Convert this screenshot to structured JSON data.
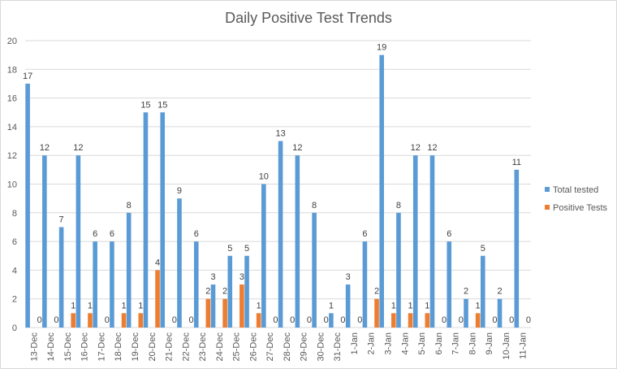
{
  "chart_data": {
    "type": "bar",
    "title": "Daily Positive Test Trends",
    "xlabel": "",
    "ylabel": "",
    "ylim": [
      0,
      20
    ],
    "yticks": [
      0,
      2,
      4,
      6,
      8,
      10,
      12,
      14,
      16,
      18,
      20
    ],
    "grid": true,
    "legend_position": "right",
    "categories": [
      "13-Dec",
      "14-Dec",
      "15-Dec",
      "16-Dec",
      "17-Dec",
      "18-Dec",
      "19-Dec",
      "20-Dec",
      "21-Dec",
      "22-Dec",
      "23-Dec",
      "24-Dec",
      "25-Dec",
      "26-Dec",
      "27-Dec",
      "28-Dec",
      "29-Dec",
      "30-Dec",
      "31-Dec",
      "1-Jan",
      "2-Jan",
      "3-Jan",
      "4-Jan",
      "5-Jan",
      "6-Jan",
      "7-Jan",
      "8-Jan",
      "9-Jan",
      "10-Jan",
      "11-Jan"
    ],
    "series": [
      {
        "name": "Total tested",
        "color": "#5b9bd5",
        "values": [
          17,
          12,
          7,
          12,
          6,
          6,
          8,
          15,
          15,
          9,
          6,
          3,
          5,
          5,
          10,
          13,
          12,
          8,
          1,
          3,
          6,
          19,
          8,
          12,
          12,
          6,
          2,
          5,
          2,
          11
        ]
      },
      {
        "name": "Positive Tests",
        "color": "#ed7d31",
        "values": [
          0,
          0,
          1,
          1,
          0,
          1,
          1,
          4,
          0,
          0,
          2,
          2,
          3,
          1,
          0,
          0,
          0,
          0,
          0,
          0,
          2,
          1,
          1,
          1,
          0,
          0,
          1,
          0,
          0,
          0
        ]
      }
    ]
  }
}
